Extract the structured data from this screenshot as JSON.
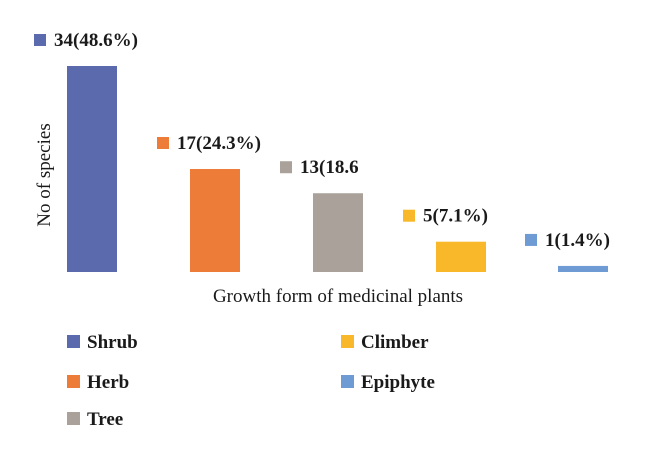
{
  "chart_data": {
    "type": "bar",
    "categories": [
      "Shrub",
      "Herb",
      "Tree",
      "Climber",
      "Epiphyte"
    ],
    "values": [
      34,
      17,
      13,
      5,
      1
    ],
    "data_labels": [
      "34(48.6%)",
      "17(24.3%)",
      "13(18.6",
      "5(7.1%)",
      "1(1.4%)"
    ],
    "colors": [
      "#5b6aad",
      "#ec7c37",
      "#a9a19a",
      "#f9b82a",
      "#6e9bd4"
    ],
    "xlabel": "Growth form of medicinal plants",
    "ylabel": "No of species",
    "ylim": [
      0,
      34
    ],
    "grid": false,
    "legend_position": "bottom"
  }
}
